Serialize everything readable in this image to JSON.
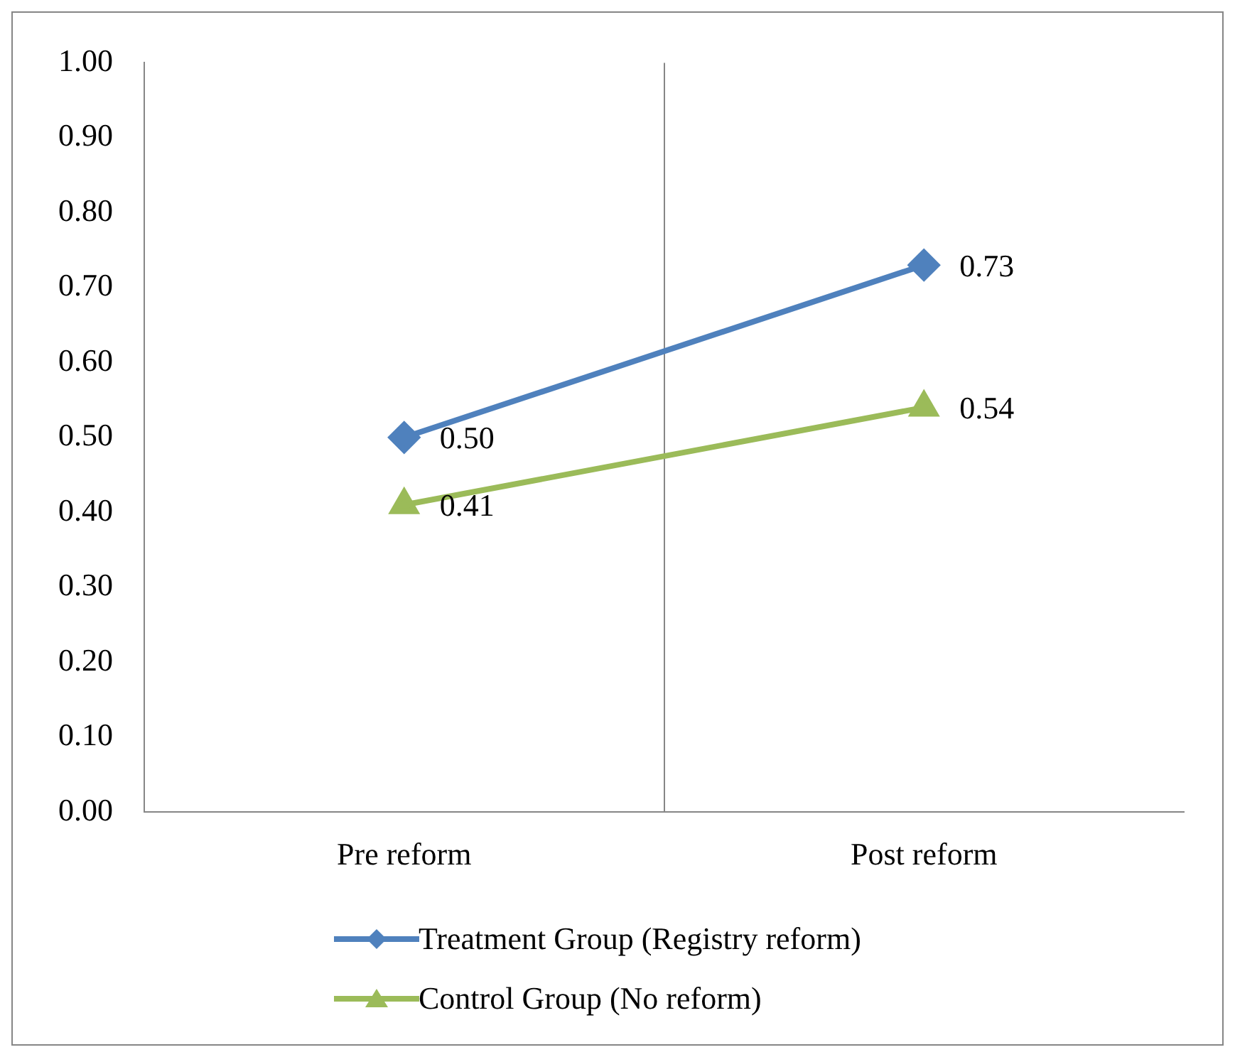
{
  "chart_data": {
    "type": "line",
    "categories": [
      "Pre reform",
      "Post reform"
    ],
    "series": [
      {
        "name": "Treatment Group (Registry reform)",
        "color": "#4f81bd",
        "values": [
          0.5,
          0.73
        ],
        "value_labels": [
          "0.50",
          "0.73"
        ],
        "marker": "diamond"
      },
      {
        "name": "Control Group (No reform)",
        "color": "#9bbb59",
        "values": [
          0.41,
          0.54
        ],
        "value_labels": [
          "0.41",
          "0.54"
        ],
        "marker": "triangle"
      }
    ],
    "ylim": [
      0,
      1
    ],
    "yticks": [
      {
        "value": 0,
        "label": "0.00"
      },
      {
        "value": 0.1,
        "label": "0.10"
      },
      {
        "value": 0.2,
        "label": "0.20"
      },
      {
        "value": 0.3,
        "label": "0.30"
      },
      {
        "value": 0.4,
        "label": "0.40"
      },
      {
        "value": 0.5,
        "label": "0.50"
      },
      {
        "value": 0.6,
        "label": "0.60"
      },
      {
        "value": 0.7,
        "label": "0.70"
      },
      {
        "value": 0.8,
        "label": "0.80"
      },
      {
        "value": 0.9,
        "label": "0.90"
      },
      {
        "value": 1,
        "label": "1.00"
      }
    ],
    "grid": "x",
    "legend": "bottom",
    "line_style": "solid"
  }
}
